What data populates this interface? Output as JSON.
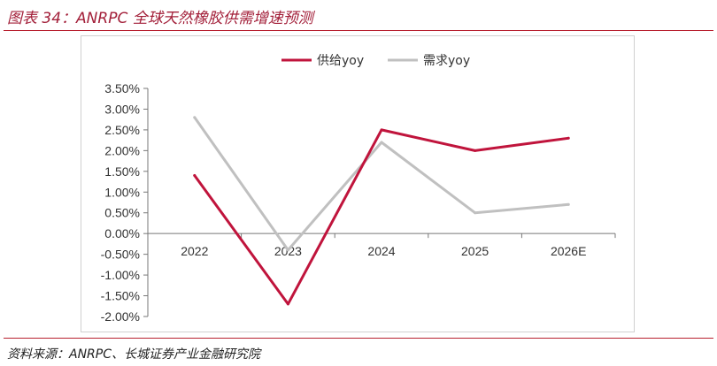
{
  "figure": {
    "title": "图表 34：ANRPC 全球天然橡胶供需增速预测",
    "source": "资料来源：ANRPC、长城证券产业金融研究院"
  },
  "chart_data": {
    "type": "line",
    "title": "",
    "xlabel": "",
    "ylabel": "",
    "categories": [
      "2022",
      "2023",
      "2024",
      "2025",
      "2026E"
    ],
    "series": [
      {
        "name": "供给yoy",
        "color": "#c0143c",
        "values": [
          1.4,
          -1.7,
          2.5,
          2.0,
          2.3
        ]
      },
      {
        "name": "需求yoy",
        "color": "#c0c0c0",
        "values": [
          2.8,
          -0.4,
          2.2,
          0.5,
          0.7
        ]
      }
    ],
    "ylim": [
      -2.0,
      3.5
    ],
    "yticks": [
      3.5,
      3.0,
      2.5,
      2.0,
      1.5,
      1.0,
      0.5,
      0.0,
      -0.5,
      -1.0,
      -1.5,
      -2.0
    ],
    "ytick_labels": [
      "3.50%",
      "3.00%",
      "2.50%",
      "2.00%",
      "1.50%",
      "1.00%",
      "0.50%",
      "0.00%",
      "-0.50%",
      "-1.00%",
      "-1.50%",
      "-2.00%"
    ],
    "grid": false,
    "legend_position": "top-center"
  }
}
